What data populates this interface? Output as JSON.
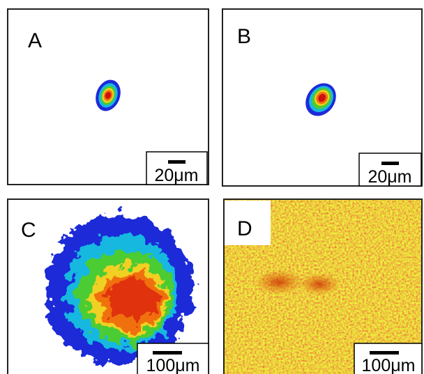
{
  "panels": [
    {
      "label": "A",
      "scale_bar": "20μm"
    },
    {
      "label": "B",
      "scale_bar": "20μm"
    },
    {
      "label": "C",
      "scale_bar": "100μm"
    },
    {
      "label": "D",
      "scale_bar": "100μm"
    }
  ]
}
